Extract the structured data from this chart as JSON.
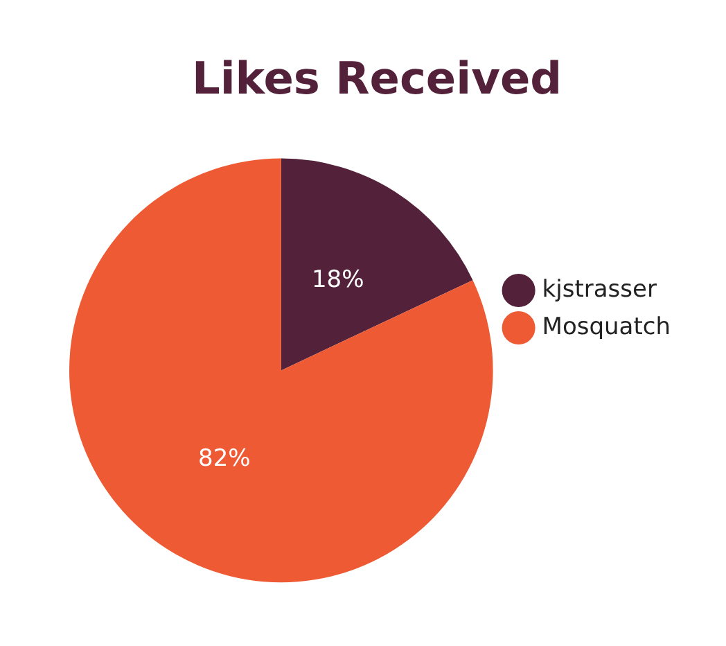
{
  "chart_data": {
    "type": "pie",
    "title": "Likes Received",
    "categories": [
      "kjstrasser",
      "Mosquatch"
    ],
    "values": [
      18,
      82
    ],
    "colors": [
      "#54213a",
      "#ee5a33"
    ],
    "value_labels": [
      "18%",
      "82%"
    ],
    "legend": "right"
  }
}
